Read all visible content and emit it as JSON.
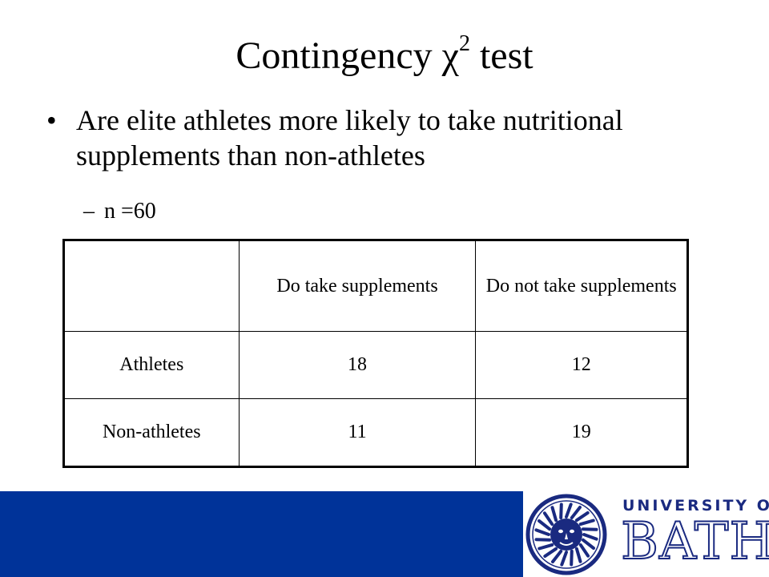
{
  "slide": {
    "title": "Contingency χ",
    "title_superscript": "2",
    "title_suffix": " test",
    "bullet_marker": "•",
    "bullet_text": "Are elite athletes more likely to take nutritional supplements than non-athletes",
    "sub_marker": "–",
    "sub_text": "n =60"
  },
  "table": {
    "columns": [
      "",
      "Do take supplements",
      "Do not take supplements"
    ],
    "rows": [
      {
        "label": "Athletes",
        "values": [
          "18",
          "12"
        ]
      },
      {
        "label": "Non-athletes",
        "values": [
          "11",
          "19"
        ]
      }
    ]
  },
  "footer": {
    "logo_line1": "UNIVERSITY OF",
    "logo_line2": "BATH",
    "bar_color": "#003399",
    "logo_color": "#1a2a80"
  }
}
